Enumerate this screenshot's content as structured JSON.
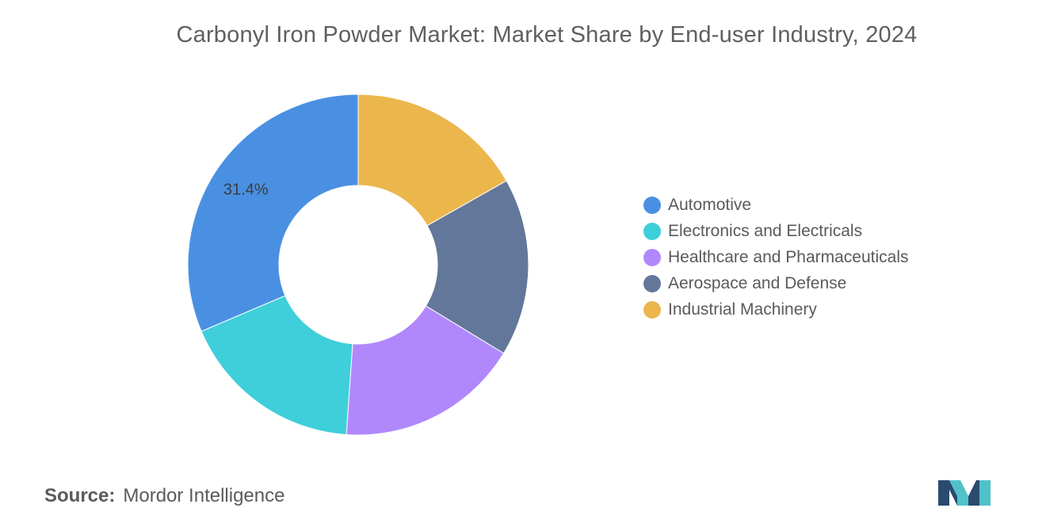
{
  "chart_data": {
    "type": "pie",
    "variant": "donut",
    "title": "Carbonyl Iron Powder Market: Market Share by End-user Industry, 2024",
    "categories": [
      "Automotive",
      "Electronics and Electricals",
      "Healthcare and Pharmaceuticals",
      "Aerospace and Defense",
      "Industrial Machinery"
    ],
    "values": [
      31.4,
      17.5,
      17.4,
      16.9,
      16.8
    ],
    "colors": [
      "#4a90e2",
      "#3ecfda",
      "#b088fc",
      "#63779a",
      "#ebb74d"
    ],
    "data_labels": [
      {
        "category": "Automotive",
        "text": "31.4%"
      }
    ],
    "legend_position": "right",
    "start_direction": "top",
    "direction": "counterclockwise"
  },
  "source": {
    "label": "Source:",
    "value": "Mordor Intelligence"
  },
  "logo": {
    "icon": "mordor-intelligence-logo",
    "colors": [
      "#2b4a6f",
      "#4fc3c9"
    ]
  }
}
